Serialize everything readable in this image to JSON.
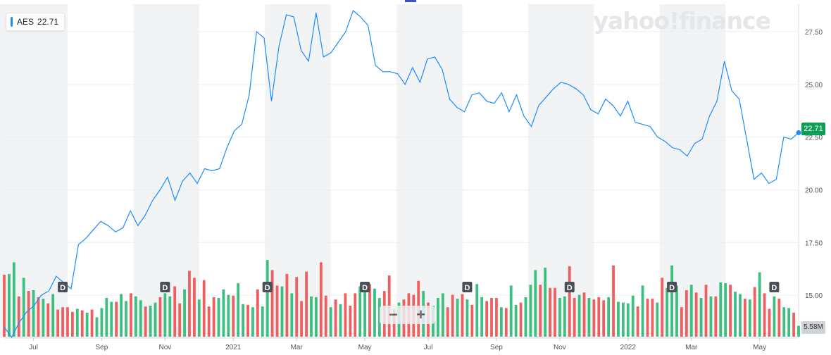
{
  "ticker": {
    "symbol": "AES",
    "price": "22.71"
  },
  "logo_text": "yahoo!finance",
  "last_price_tag": "22.71",
  "volume_tag": "5.58M",
  "zoom": {
    "minus": "−",
    "plus": "+"
  },
  "colors": {
    "line": "#1a8cff",
    "up_volume": "#3dbf7f",
    "down_volume": "#ef5f5f",
    "price_tag": "#0f9d58"
  },
  "chart_data": {
    "type": "line",
    "ylim": [
      13.3,
      28.5
    ],
    "y_ticks": [
      15.0,
      17.5,
      20.0,
      22.5,
      25.0,
      27.5
    ],
    "y_tick_labels": [
      "15.00",
      "17.50",
      "20.00",
      "22.50",
      "25.00",
      "27.50"
    ],
    "x_tick_labels": [
      "Jul",
      "Sep",
      "Nov",
      "2021",
      "Mar",
      "May",
      "Jul",
      "Sep",
      "Nov",
      "2022",
      "Mar",
      "May"
    ],
    "x_tick_index": [
      6,
      20,
      33,
      47,
      60,
      74,
      87,
      101,
      114,
      128,
      141,
      155
    ],
    "series": [
      {
        "values": [
          13.5,
          13.0,
          13.7,
          14.2,
          14.5,
          15.0,
          15.2,
          15.9,
          15.6,
          15.3,
          17.4,
          17.7,
          18.1,
          18.5,
          18.3,
          18.0,
          18.2,
          19.0,
          18.3,
          18.8,
          19.5,
          20.0,
          20.6,
          19.5,
          20.4,
          20.8,
          20.3,
          21.0,
          20.9,
          21.0,
          22.0,
          22.8,
          23.1,
          24.5,
          27.5,
          27.2,
          24.2,
          26.8,
          28.3,
          28.2,
          26.6,
          26.1,
          28.4,
          26.3,
          26.5,
          27.0,
          27.5,
          28.5,
          28.2,
          27.8,
          25.9,
          25.6,
          25.6,
          25.5,
          25.0,
          25.8,
          25.1,
          26.2,
          26.3,
          25.7,
          24.3,
          23.9,
          23.7,
          24.5,
          24.6,
          24.2,
          24.1,
          24.6,
          23.7,
          24.5,
          23.5,
          23.0,
          24.0,
          24.4,
          24.8,
          25.1,
          25.0,
          24.8,
          24.5,
          23.8,
          23.6,
          24.3,
          24.0,
          23.5,
          24.2,
          23.2,
          23.1,
          23.0,
          22.5,
          22.3,
          22.0,
          21.9,
          21.6,
          22.2,
          22.4,
          23.5,
          24.2,
          26.1,
          24.7,
          24.3,
          22.4,
          20.5,
          20.8,
          20.3,
          20.5,
          22.5,
          22.4,
          22.71
        ]
      },
      {
        "name": "Volume",
        "up": [
          false,
          true,
          true,
          false,
          true,
          false,
          true,
          false,
          true,
          false,
          true,
          false,
          false,
          false,
          false,
          true,
          false,
          true,
          false,
          true,
          true,
          true,
          true,
          false,
          true,
          true,
          false,
          true,
          true,
          false,
          true,
          true,
          false,
          true,
          true,
          false,
          false,
          true,
          false,
          false,
          true,
          false,
          false,
          false,
          true,
          true,
          true,
          false,
          true,
          true,
          false,
          true,
          false,
          true,
          true,
          false,
          false,
          true,
          false,
          true,
          false,
          false,
          false,
          true,
          true,
          false,
          false,
          true,
          false,
          true,
          false,
          false,
          false,
          true,
          true,
          false,
          true,
          true,
          false,
          false,
          false,
          true,
          false,
          false,
          false,
          false,
          true,
          false,
          true,
          true,
          true,
          false,
          false,
          true,
          false,
          true,
          false,
          true,
          true,
          false,
          false,
          false,
          true,
          false,
          true,
          true,
          false,
          true,
          true,
          true,
          false,
          true,
          false,
          false,
          true,
          true,
          false,
          false,
          true,
          false,
          true,
          false,
          false,
          false,
          true,
          false,
          true,
          true,
          true,
          true,
          false,
          true,
          false,
          false,
          true,
          false,
          true,
          true,
          true,
          false,
          false,
          true,
          false,
          true,
          false,
          true,
          false,
          true,
          true,
          false,
          true,
          true,
          false,
          true,
          false,
          true,
          false,
          false,
          true,
          false,
          true,
          true,
          false,
          true
        ]
      }
    ],
    "volume_heights": [
      0.8,
      0.81,
      0.96,
      0.52,
      0.76,
      0.59,
      0.6,
      0.51,
      0.49,
      0.43,
      0.55,
      0.35,
      0.38,
      0.38,
      0.32,
      0.36,
      0.34,
      0.31,
      0.35,
      0.25,
      0.37,
      0.5,
      0.45,
      0.45,
      0.55,
      0.46,
      0.56,
      0.52,
      0.47,
      0.39,
      0.4,
      0.44,
      0.51,
      0.56,
      0.52,
      0.65,
      0.43,
      0.61,
      0.85,
      0.76,
      0.48,
      0.73,
      0.39,
      0.51,
      0.5,
      0.61,
      0.54,
      0.53,
      0.69,
      0.42,
      0.41,
      0.38,
      0.61,
      0.39,
      0.99,
      0.86,
      0.66,
      0.65,
      0.81,
      0.56,
      0.77,
      0.46,
      0.84,
      0.52,
      0.51,
      0.96,
      0.53,
      0.38,
      0.48,
      0.42,
      0.56,
      0.4,
      0.56,
      0.65,
      0.6,
      0.68,
      0.62,
      0.5,
      0.59,
      0.79,
      0.35,
      0.44,
      0.48,
      0.56,
      0.54,
      0.72,
      0.59,
      0.44,
      0.4,
      0.5,
      0.56,
      0.38,
      0.54,
      0.49,
      0.55,
      0.48,
      0.41,
      0.68,
      0.51,
      0.46,
      0.5,
      0.5,
      0.38,
      0.37,
      0.66,
      0.41,
      0.44,
      0.51,
      0.67,
      0.86,
      0.67,
      0.89,
      0.63,
      0.63,
      0.5,
      0.52,
      0.91,
      0.5,
      0.54,
      0.57,
      0.5,
      0.48,
      0.51,
      0.47,
      0.51,
      0.92,
      0.45,
      0.44,
      0.43,
      0.53,
      0.39,
      0.66,
      0.49,
      0.49,
      0.44,
      0.76,
      0.63,
      0.92,
      0.66,
      0.38,
      0.6,
      0.67,
      0.57,
      0.5,
      0.67,
      0.52,
      0.52,
      0.7,
      0.69,
      0.67,
      0.58,
      0.55,
      0.49,
      0.48,
      0.64,
      0.83,
      0.56,
      0.36,
      0.52,
      0.49,
      0.38,
      0.37,
      0.31,
      0.14
    ],
    "dividend_marker": "D",
    "dividend_index": [
      12,
      33,
      54,
      74,
      95,
      116,
      137,
      158
    ]
  }
}
